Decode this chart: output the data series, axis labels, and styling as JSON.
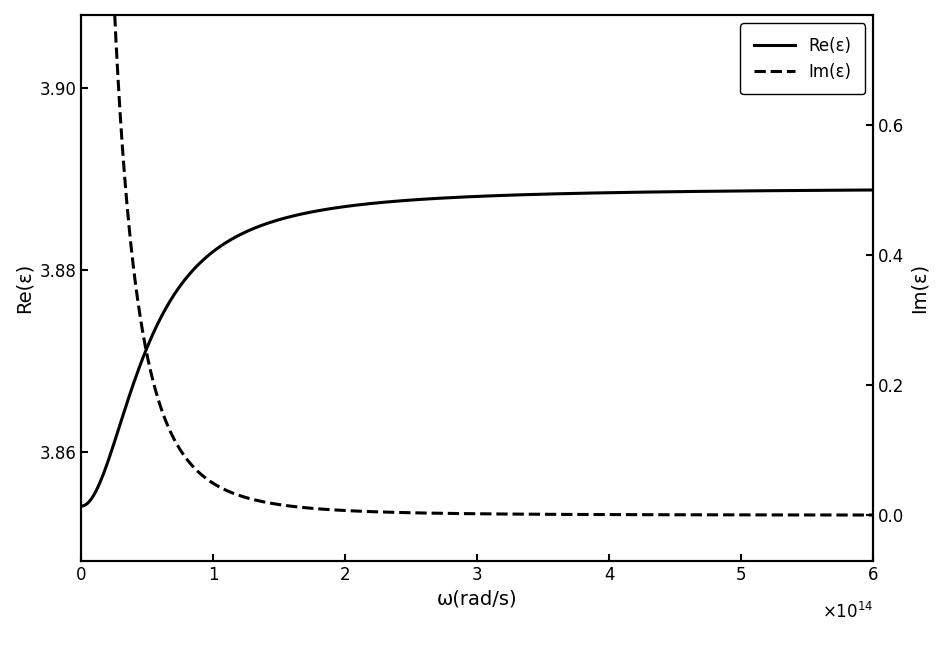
{
  "xlabel": "ω(rad/s)",
  "ylabel_left": "Re(ε)",
  "ylabel_right": "Im(ε)",
  "x_min": 0,
  "x_max": 600000000000000.0,
  "yleft_min": 3.848,
  "yleft_max": 3.908,
  "yleft_ticks": [
    3.86,
    3.88,
    3.9
  ],
  "yright_min": -0.07,
  "yright_max": 0.77,
  "yright_ticks": [
    0.0,
    0.2,
    0.4,
    0.6
  ],
  "line_color": "#000000",
  "linewidth": 2.2,
  "background_color": "#ffffff",
  "legend_loc": "upper right",
  "re_label": "Re(ε)",
  "im_label": "Im(ε)",
  "eps_inf": 3.889,
  "gamma": 50000000000000.0,
  "omega_p_sq_factor": 0.035,
  "im_scale": 14.0,
  "x_tick_vals": [
    0,
    100000000000000.0,
    200000000000000.0,
    300000000000000.0,
    400000000000000.0,
    500000000000000.0,
    600000000000000.0
  ],
  "x_tick_labels": [
    "0",
    "1",
    "2",
    "3",
    "4",
    "5",
    "6"
  ],
  "exponent_text": "×10¹⁴",
  "fontsize_label": 14,
  "fontsize_tick": 12,
  "fontsize_legend": 12
}
